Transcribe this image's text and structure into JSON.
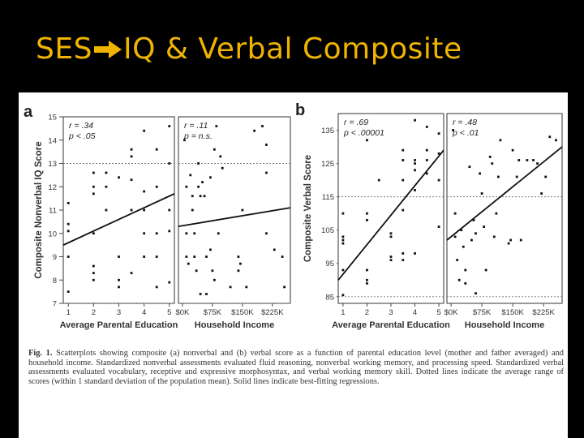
{
  "slide": {
    "title_prefix": "SES",
    "title_suffix": "IQ & Verbal Composite",
    "arrow_icon": "right-arrow-icon",
    "title_color": "#f0b400",
    "background": "#000000"
  },
  "figure": {
    "caption_label": "Fig. 1.",
    "caption_text": "Scatterplots showing composite (a) nonverbal and (b) verbal score as a function of parental education level (mother and father averaged) and household income. Standardized nonverbal assessments evaluated fluid reasoning, nonverbal working memory, and processing speed. Standardized verbal assessments evaluated vocabulary, receptive and expressive morphosyntax, and verbal working memory skill. Dotted lines indicate the average range of scores (within 1 standard deviation of the population mean). Solid lines indicate best-fitting regressions."
  },
  "chart_data": [
    {
      "type": "scatter",
      "panel_label": "a",
      "ylabel": "Composite Nonverbal IQ Score",
      "ylim": [
        7,
        15
      ],
      "yticks": [
        "7",
        "8",
        "9",
        "10",
        "11",
        "12",
        "13",
        "14",
        "15"
      ],
      "ytick_values": [
        7,
        8,
        9,
        10,
        11,
        12,
        13,
        14,
        15
      ],
      "dotted_lines_y": [
        7,
        13
      ],
      "subplots": [
        {
          "xlabel": "Average Parental Education",
          "xticks": [
            "1",
            "2",
            "3",
            "4",
            "5"
          ],
          "xtick_values": [
            1,
            2,
            3,
            4,
            5
          ],
          "xlim": [
            0.8,
            5.2
          ],
          "stat_r": "r = .34",
          "stat_p": "p < .05",
          "regression": [
            [
              0.8,
              9.5
            ],
            [
              5.2,
              11.7
            ]
          ],
          "points": [
            [
              1,
              11.3
            ],
            [
              1,
              10.4
            ],
            [
              1,
              10.1
            ],
            [
              1,
              9
            ],
            [
              1,
              7.5
            ],
            [
              2,
              12.6
            ],
            [
              2,
              12
            ],
            [
              2,
              11.7
            ],
            [
              2,
              10
            ],
            [
              2,
              8.6
            ],
            [
              2,
              8.3
            ],
            [
              2,
              8
            ],
            [
              2.5,
              12
            ],
            [
              2.5,
              11
            ],
            [
              2.5,
              12.6
            ],
            [
              3,
              12.4
            ],
            [
              3,
              9
            ],
            [
              3,
              8
            ],
            [
              3,
              7.7
            ],
            [
              3.5,
              13.6
            ],
            [
              3.5,
              13.3
            ],
            [
              3.5,
              12.3
            ],
            [
              3.5,
              11
            ],
            [
              3.5,
              8.3
            ],
            [
              4,
              14.4
            ],
            [
              4,
              11.8
            ],
            [
              4,
              10
            ],
            [
              4,
              11
            ],
            [
              4,
              9
            ],
            [
              4.5,
              13.6
            ],
            [
              4.5,
              12
            ],
            [
              4.5,
              10
            ],
            [
              4.5,
              9
            ],
            [
              4.5,
              7.7
            ],
            [
              5,
              14.6
            ],
            [
              5,
              13
            ],
            [
              5,
              11
            ],
            [
              5,
              10.1
            ],
            [
              5,
              7.9
            ]
          ]
        },
        {
          "xlabel": "Household Income",
          "xticks": [
            "$0K",
            "$75K",
            "$150K",
            "$225K"
          ],
          "xtick_values": [
            0,
            75,
            150,
            225
          ],
          "xlim": [
            -10,
            270
          ],
          "stat_r": "r = .11",
          "stat_p": "p = n.s.",
          "regression": [
            [
              -10,
              10.3
            ],
            [
              270,
              11.1
            ]
          ],
          "points": [
            [
              5,
              14
            ],
            [
              10,
              12
            ],
            [
              10,
              10
            ],
            [
              10,
              9
            ],
            [
              15,
              8.7
            ],
            [
              20,
              12.5
            ],
            [
              25,
              11.6
            ],
            [
              25,
              11
            ],
            [
              30,
              10
            ],
            [
              30,
              9
            ],
            [
              35,
              8.4
            ],
            [
              40,
              13
            ],
            [
              40,
              12
            ],
            [
              45,
              11.6
            ],
            [
              45,
              7.4
            ],
            [
              50,
              12.2
            ],
            [
              55,
              11.6
            ],
            [
              60,
              9
            ],
            [
              60,
              7.4
            ],
            [
              70,
              12.4
            ],
            [
              70,
              9.3
            ],
            [
              75,
              8.4
            ],
            [
              80,
              8
            ],
            [
              80,
              13.6
            ],
            [
              85,
              14.6
            ],
            [
              90,
              10
            ],
            [
              95,
              13.3
            ],
            [
              100,
              12.8
            ],
            [
              120,
              7.7
            ],
            [
              140,
              9
            ],
            [
              140,
              8.4
            ],
            [
              145,
              8.7
            ],
            [
              150,
              11
            ],
            [
              160,
              7.7
            ],
            [
              180,
              14.4
            ],
            [
              200,
              14.6
            ],
            [
              210,
              12.6
            ],
            [
              210,
              10
            ],
            [
              210,
              13.8
            ],
            [
              230,
              9.3
            ],
            [
              250,
              9
            ],
            [
              255,
              7.7
            ]
          ]
        }
      ]
    },
    {
      "type": "scatter",
      "panel_label": "b",
      "ylabel": "Composite Verbal Score",
      "ylim": [
        83,
        140
      ],
      "yticks": [
        "85",
        "95",
        "105",
        "115",
        "125",
        "135"
      ],
      "ytick_values": [
        85,
        95,
        105,
        115,
        125,
        135
      ],
      "dotted_lines_y": [
        85,
        115
      ],
      "subplots": [
        {
          "xlabel": "Average Parental Education",
          "xticks": [
            "1",
            "2",
            "3",
            "4",
            "5"
          ],
          "xtick_values": [
            1,
            2,
            3,
            4,
            5
          ],
          "xlim": [
            0.8,
            5.2
          ],
          "stat_r": "r = .69",
          "stat_p": "p < .00001",
          "regression": [
            [
              0.8,
              90
            ],
            [
              5.2,
              129
            ]
          ],
          "points": [
            [
              1,
              110
            ],
            [
              1,
              103
            ],
            [
              1,
              102
            ],
            [
              1,
              101
            ],
            [
              1,
              93
            ],
            [
              1,
              85.5
            ],
            [
              2,
              132
            ],
            [
              2,
              110
            ],
            [
              2,
              108
            ],
            [
              2,
              93
            ],
            [
              2,
              90
            ],
            [
              2,
              89
            ],
            [
              2.5,
              120
            ],
            [
              3,
              104
            ],
            [
              3,
              103
            ],
            [
              3,
              97
            ],
            [
              3,
              96
            ],
            [
              3.5,
              129
            ],
            [
              3.5,
              126
            ],
            [
              3.5,
              120
            ],
            [
              3.5,
              111
            ],
            [
              3.5,
              98
            ],
            [
              3.5,
              96
            ],
            [
              4,
              138
            ],
            [
              4,
              126
            ],
            [
              4,
              125
            ],
            [
              4,
              123
            ],
            [
              4,
              117
            ],
            [
              4,
              98
            ],
            [
              4.5,
              136
            ],
            [
              4.5,
              126
            ],
            [
              4.5,
              122
            ],
            [
              4.5,
              129
            ],
            [
              5,
              134
            ],
            [
              5,
              128
            ],
            [
              5,
              120
            ],
            [
              5,
              106
            ]
          ]
        },
        {
          "xlabel": "Household Income",
          "xticks": [
            "$0K",
            "$75K",
            "$150K",
            "$225K"
          ],
          "xtick_values": [
            0,
            75,
            150,
            225
          ],
          "xlim": [
            -10,
            270
          ],
          "stat_r": "r = .48",
          "stat_p": "p < .01",
          "regression": [
            [
              -10,
              102
            ],
            [
              270,
              130
            ]
          ],
          "points": [
            [
              5,
              135
            ],
            [
              10,
              110
            ],
            [
              10,
              103
            ],
            [
              15,
              96
            ],
            [
              20,
              90
            ],
            [
              25,
              105
            ],
            [
              30,
              100
            ],
            [
              35,
              93
            ],
            [
              35,
              89
            ],
            [
              45,
              124
            ],
            [
              50,
              102
            ],
            [
              55,
              108
            ],
            [
              60,
              104
            ],
            [
              60,
              86
            ],
            [
              70,
              122
            ],
            [
              75,
              116
            ],
            [
              80,
              106
            ],
            [
              85,
              93
            ],
            [
              95,
              127
            ],
            [
              100,
              125
            ],
            [
              105,
              103
            ],
            [
              110,
              110
            ],
            [
              115,
              121
            ],
            [
              120,
              132
            ],
            [
              140,
              101
            ],
            [
              145,
              102
            ],
            [
              150,
              129
            ],
            [
              160,
              121
            ],
            [
              165,
              126
            ],
            [
              170,
              102
            ],
            [
              185,
              126
            ],
            [
              200,
              126
            ],
            [
              210,
              125
            ],
            [
              220,
              116
            ],
            [
              230,
              121
            ],
            [
              240,
              133
            ],
            [
              255,
              132
            ]
          ]
        }
      ]
    }
  ]
}
